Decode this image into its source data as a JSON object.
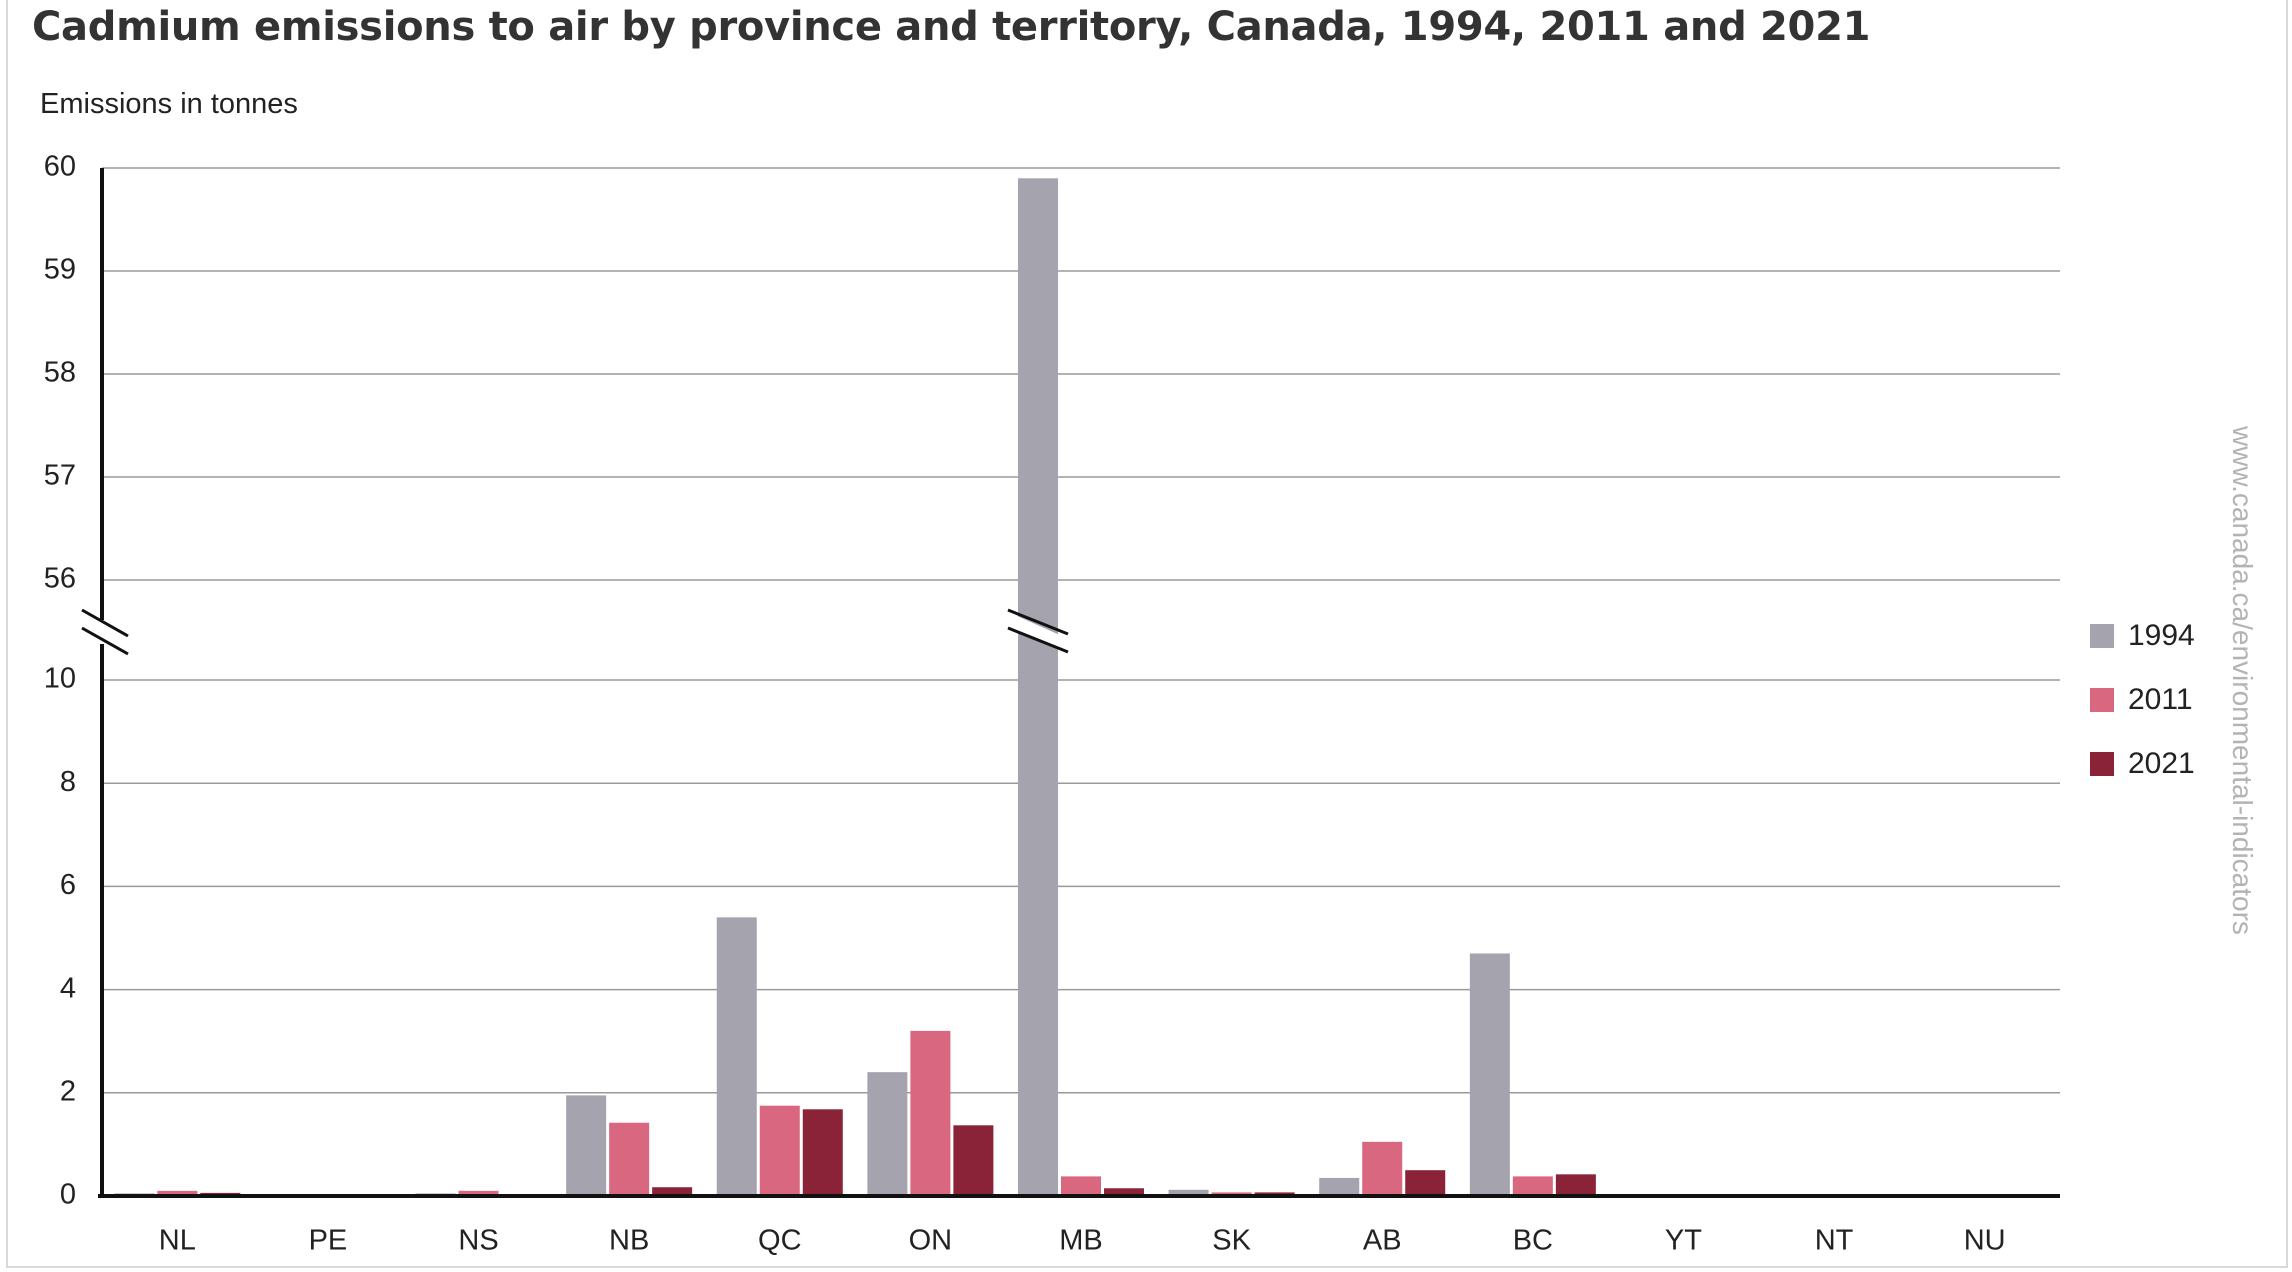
{
  "title": "Cadmium emissions to air by province and territory, Canada, 1994, 2011 and 2021",
  "source_note": "www.canada.ca/environmental-indicators",
  "colors": {
    "1994": "#a5a3ad",
    "2011": "#d9677f",
    "2021": "#8a2337"
  },
  "chart_data": {
    "type": "bar",
    "title": "Cadmium emissions to air by province and territory, Canada, 1994, 2011 and 2021",
    "ylabel": "Emissions in tonnes",
    "xlabel": "",
    "categories": [
      "NL",
      "PE",
      "NS",
      "NB",
      "QC",
      "ON",
      "MB",
      "SK",
      "AB",
      "BC",
      "YT",
      "NT",
      "NU"
    ],
    "series": [
      {
        "name": "1994",
        "values": [
          0.05,
          0.0,
          0.05,
          1.95,
          5.4,
          2.4,
          59.9,
          0.12,
          0.35,
          4.7,
          0.0,
          0.0,
          0.0
        ]
      },
      {
        "name": "2011",
        "values": [
          0.1,
          0.0,
          0.1,
          1.42,
          1.75,
          3.2,
          0.38,
          0.07,
          1.05,
          0.38,
          0.0,
          0.0,
          0.0
        ]
      },
      {
        "name": "2021",
        "values": [
          0.06,
          0.0,
          0.0,
          0.17,
          1.68,
          1.37,
          0.15,
          0.07,
          0.5,
          0.42,
          0.0,
          0.0,
          0.0
        ]
      }
    ],
    "y_axis_break": {
      "lower_range": [
        0,
        10
      ],
      "upper_range": [
        56,
        60
      ]
    },
    "lower_ticks": [
      "0",
      "2",
      "4",
      "6",
      "8",
      "10"
    ],
    "upper_ticks": [
      "56",
      "57",
      "58",
      "59",
      "60"
    ],
    "grid": true,
    "legend_position": "right"
  }
}
